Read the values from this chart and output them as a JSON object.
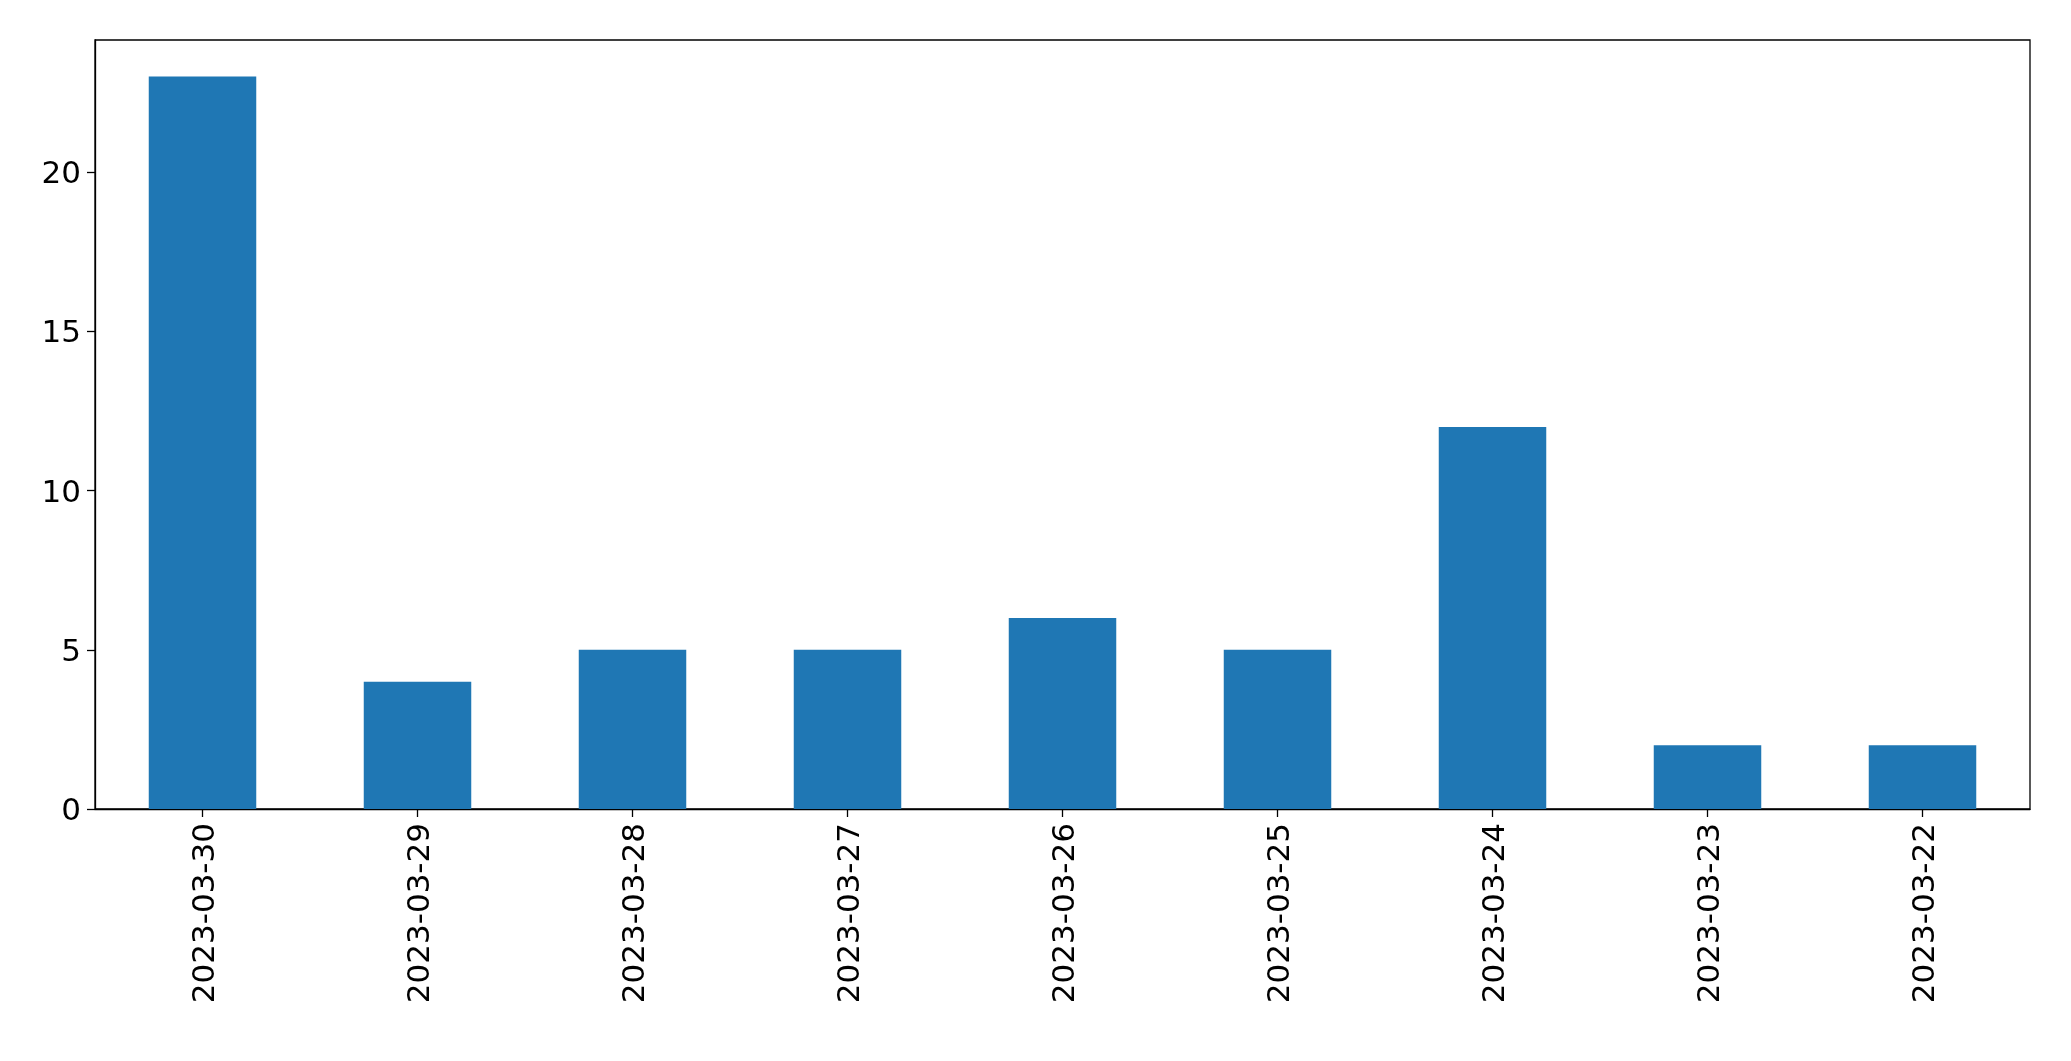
{
  "chart_data": {
    "type": "bar",
    "categories": [
      "2023-03-30",
      "2023-03-29",
      "2023-03-28",
      "2023-03-27",
      "2023-03-26",
      "2023-03-25",
      "2023-03-24",
      "2023-03-23",
      "2023-03-22"
    ],
    "values": [
      23,
      4,
      5,
      5,
      6,
      5,
      12,
      2,
      2
    ],
    "color": "#1f77b4",
    "ylim": [
      0,
      24.15
    ],
    "yticks": [
      0,
      5,
      10,
      15,
      20
    ],
    "grid": false
  }
}
